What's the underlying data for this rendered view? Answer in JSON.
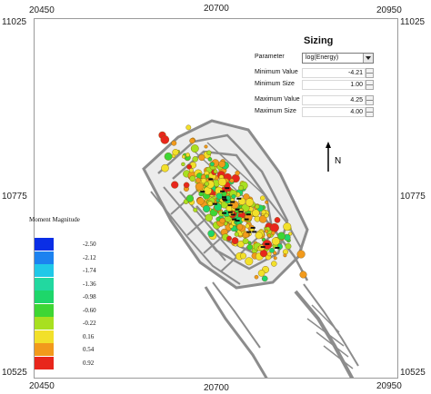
{
  "axes": {
    "top_left": "20450",
    "top_mid": "20700",
    "top_right": "20950",
    "bottom_left": "20450",
    "bottom_mid": "20700",
    "bottom_right": "20950",
    "left_top": "11025",
    "left_mid": "10775",
    "left_bottom": "10525",
    "right_top": "11025",
    "right_mid": "10775",
    "right_bottom": "10525"
  },
  "north_label": "N",
  "sizing": {
    "title": "Sizing",
    "parameter_label": "Parameter",
    "parameter_value": "log(Energy)",
    "min_value_label": "Minimum Value",
    "min_value": "-4.21",
    "min_size_label": "Minimum Size",
    "min_size": "1.00",
    "max_value_label": "Maximum Value",
    "max_value": "4.25",
    "max_size_label": "Maximum Size",
    "max_size": "4.00"
  },
  "legend": {
    "title": "Moment Magnitude",
    "entries": [
      {
        "label": "-2.50",
        "color": "#0a2ee6"
      },
      {
        "label": "-2.12",
        "color": "#1c82f0"
      },
      {
        "label": "-1.74",
        "color": "#20c8e8"
      },
      {
        "label": "-1.36",
        "color": "#22d8a0"
      },
      {
        "label": "-0.98",
        "color": "#1ed66a"
      },
      {
        "label": "-0.60",
        "color": "#3ed634"
      },
      {
        "label": "-0.22",
        "color": "#a8e020"
      },
      {
        "label": "0.16",
        "color": "#f2e02a"
      },
      {
        "label": "0.54",
        "color": "#f29a1c"
      },
      {
        "label": "0.92",
        "color": "#e8261c"
      }
    ]
  }
}
